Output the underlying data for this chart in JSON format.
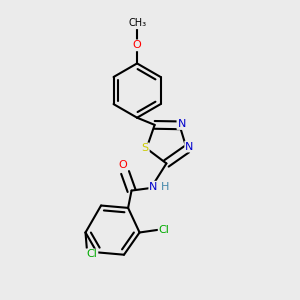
{
  "bg_color": "#ebebeb",
  "bond_color": "#000000",
  "bond_width": 1.5,
  "atom_colors": {
    "O": "#ff0000",
    "N": "#0000cc",
    "S": "#cccc00",
    "Cl": "#00aa00",
    "C": "#000000",
    "H": "#4488aa"
  },
  "font_size": 8,
  "xlim": [
    -0.05,
    1.05
  ],
  "ylim": [
    -0.05,
    1.1
  ]
}
